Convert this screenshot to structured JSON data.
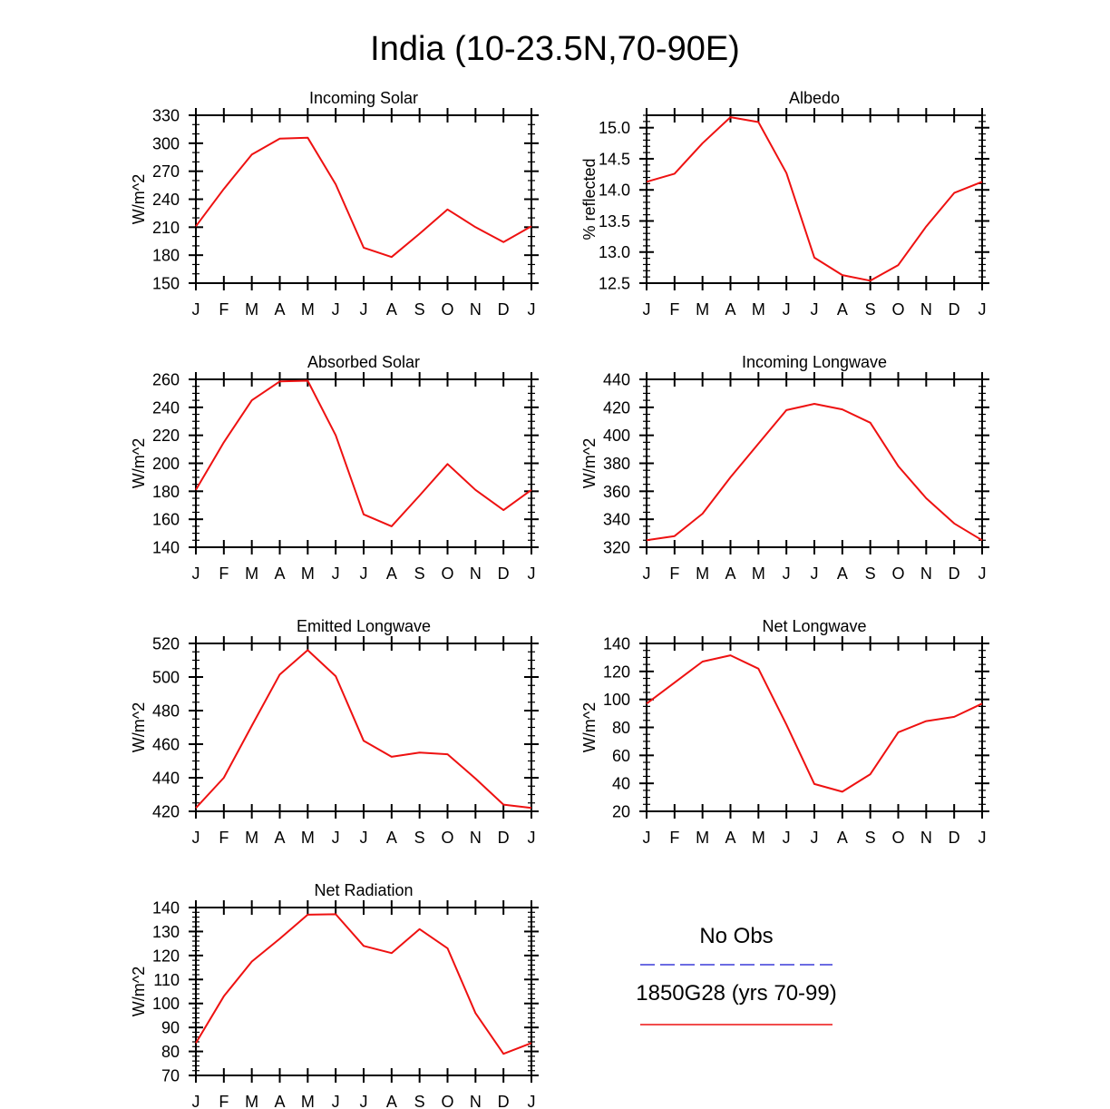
{
  "figure_title": "India (10-23.5N,70-90E)",
  "legend": {
    "obs_label": "No Obs",
    "obs_color": "#3b3bd9",
    "model_label": "1850G28 (yrs 70-99)",
    "model_color": "#ee1111"
  },
  "chart_data": [
    {
      "type": "line",
      "title": "Incoming Solar",
      "xlabel": "",
      "ylabel": "W/m^2",
      "categories": [
        "J",
        "F",
        "M",
        "A",
        "M",
        "J",
        "J",
        "A",
        "S",
        "O",
        "N",
        "D",
        "J"
      ],
      "ylim": [
        150,
        330
      ],
      "yticks": [
        "150",
        "180",
        "210",
        "240",
        "270",
        "300",
        "330"
      ],
      "y_minor_step": 10,
      "series": [
        {
          "name": "1850G28 (yrs 70-99)",
          "color": "#ee1111",
          "values": [
            211,
            251,
            288,
            305,
            306,
            256,
            188,
            178,
            203,
            229,
            210,
            194,
            211
          ]
        }
      ]
    },
    {
      "type": "line",
      "title": "Albedo",
      "xlabel": "",
      "ylabel": "% reflected",
      "categories": [
        "J",
        "F",
        "M",
        "A",
        "M",
        "J",
        "J",
        "A",
        "S",
        "O",
        "N",
        "D",
        "J"
      ],
      "ylim": [
        12.5,
        15.2
      ],
      "yticks": [
        "12.5",
        "13.0",
        "13.5",
        "14.0",
        "14.5",
        "15.0"
      ],
      "y_minor_step": 0.1,
      "series": [
        {
          "name": "1850G28 (yrs 70-99)",
          "color": "#ee1111",
          "values": [
            14.13,
            14.26,
            14.75,
            15.17,
            15.09,
            14.27,
            12.91,
            12.63,
            12.54,
            12.79,
            13.41,
            13.95,
            14.13
          ]
        }
      ]
    },
    {
      "type": "line",
      "title": "Absorbed Solar",
      "xlabel": "",
      "ylabel": "W/m^2",
      "categories": [
        "J",
        "F",
        "M",
        "A",
        "M",
        "J",
        "J",
        "A",
        "S",
        "O",
        "N",
        "D",
        "J"
      ],
      "ylim": [
        140,
        260
      ],
      "yticks": [
        "140",
        "160",
        "180",
        "200",
        "220",
        "240",
        "260"
      ],
      "y_minor_step": 5,
      "series": [
        {
          "name": "1850G28 (yrs 70-99)",
          "color": "#ee1111",
          "values": [
            181,
            215,
            245,
            258.5,
            259,
            220,
            163.5,
            155,
            177,
            199.5,
            181,
            166.5,
            181
          ]
        }
      ]
    },
    {
      "type": "line",
      "title": "Incoming Longwave",
      "xlabel": "",
      "ylabel": "W/m^2",
      "categories": [
        "J",
        "F",
        "M",
        "A",
        "M",
        "J",
        "J",
        "A",
        "S",
        "O",
        "N",
        "D",
        "J"
      ],
      "ylim": [
        320,
        440
      ],
      "yticks": [
        "320",
        "340",
        "360",
        "380",
        "400",
        "420",
        "440"
      ],
      "y_minor_step": 5,
      "series": [
        {
          "name": "1850G28 (yrs 70-99)",
          "color": "#ee1111",
          "values": [
            325,
            328,
            344,
            370,
            394,
            418,
            422.5,
            418.5,
            409,
            378,
            355,
            337,
            325
          ]
        }
      ]
    },
    {
      "type": "line",
      "title": "Emitted Longwave",
      "xlabel": "",
      "ylabel": "W/m^2",
      "categories": [
        "J",
        "F",
        "M",
        "A",
        "M",
        "J",
        "J",
        "A",
        "S",
        "O",
        "N",
        "D",
        "J"
      ],
      "ylim": [
        420,
        520
      ],
      "yticks": [
        "420",
        "440",
        "460",
        "480",
        "500",
        "520"
      ],
      "y_minor_step": 5,
      "series": [
        {
          "name": "1850G28 (yrs 70-99)",
          "color": "#ee1111",
          "values": [
            422,
            440,
            471,
            501.5,
            516,
            500.5,
            462,
            452.5,
            455,
            454,
            439.5,
            424,
            422
          ]
        }
      ]
    },
    {
      "type": "line",
      "title": "Net Longwave",
      "xlabel": "",
      "ylabel": "W/m^2",
      "categories": [
        "J",
        "F",
        "M",
        "A",
        "M",
        "J",
        "J",
        "A",
        "S",
        "O",
        "N",
        "D",
        "J"
      ],
      "ylim": [
        20,
        140
      ],
      "yticks": [
        "20",
        "40",
        "60",
        "80",
        "100",
        "120",
        "140"
      ],
      "y_minor_step": 5,
      "series": [
        {
          "name": "1850G28 (yrs 70-99)",
          "color": "#ee1111",
          "values": [
            97,
            112,
            127,
            131.5,
            122,
            82,
            39.5,
            34,
            46.5,
            76.5,
            84.5,
            87.5,
            97
          ]
        }
      ]
    },
    {
      "type": "line",
      "title": "Net Radiation",
      "xlabel": "",
      "ylabel": "W/m^2",
      "categories": [
        "J",
        "F",
        "M",
        "A",
        "M",
        "J",
        "J",
        "A",
        "S",
        "O",
        "N",
        "D",
        "J"
      ],
      "ylim": [
        70,
        140
      ],
      "yticks": [
        "70",
        "80",
        "90",
        "100",
        "110",
        "120",
        "130",
        "140"
      ],
      "y_minor_step": 2,
      "series": [
        {
          "name": "1850G28 (yrs 70-99)",
          "color": "#ee1111",
          "values": [
            83.5,
            103,
            117.5,
            127,
            137,
            137.2,
            124,
            121,
            131,
            123,
            96,
            79,
            83.5
          ]
        }
      ]
    }
  ]
}
